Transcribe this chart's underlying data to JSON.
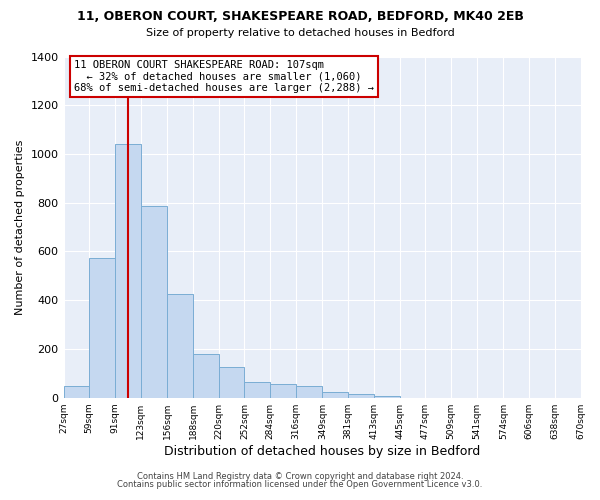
{
  "title": "11, OBERON COURT, SHAKESPEARE ROAD, BEDFORD, MK40 2EB",
  "subtitle": "Size of property relative to detached houses in Bedford",
  "xlabel": "Distribution of detached houses by size in Bedford",
  "ylabel": "Number of detached properties",
  "bar_values": [
    50,
    575,
    1040,
    785,
    425,
    180,
    125,
    65,
    55,
    50,
    25,
    15,
    5,
    0,
    0,
    0,
    0,
    0,
    0,
    0
  ],
  "bar_edges": [
    27,
    59,
    91,
    123,
    156,
    188,
    220,
    252,
    284,
    316,
    349,
    381,
    413,
    445,
    477,
    509,
    541,
    574,
    606,
    638,
    670
  ],
  "tick_labels": [
    "27sqm",
    "59sqm",
    "91sqm",
    "123sqm",
    "156sqm",
    "188sqm",
    "220sqm",
    "252sqm",
    "284sqm",
    "316sqm",
    "349sqm",
    "381sqm",
    "413sqm",
    "445sqm",
    "477sqm",
    "509sqm",
    "541sqm",
    "574sqm",
    "606sqm",
    "638sqm",
    "670sqm"
  ],
  "bar_color": "#c5d8f0",
  "bar_edgecolor": "#7aadd4",
  "vline_x": 107,
  "vline_color": "#cc0000",
  "ylim": [
    0,
    1400
  ],
  "yticks": [
    0,
    200,
    400,
    600,
    800,
    1000,
    1200,
    1400
  ],
  "annotation_line1": "11 OBERON COURT SHAKESPEARE ROAD: 107sqm",
  "annotation_line2": "← 32% of detached houses are smaller (1,060)",
  "annotation_line3": "68% of semi-detached houses are larger (2,288) →",
  "annotation_box_color": "#ffffff",
  "annotation_box_edgecolor": "#cc0000",
  "footer1": "Contains HM Land Registry data © Crown copyright and database right 2024.",
  "footer2": "Contains public sector information licensed under the Open Government Licence v3.0.",
  "bg_color": "#ffffff",
  "plot_bg_color": "#e8eef8"
}
